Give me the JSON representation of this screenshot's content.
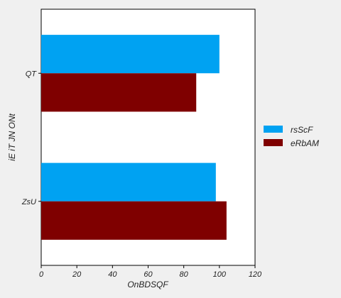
{
  "chart_data": {
    "type": "bar",
    "orientation": "horizontal",
    "categories": [
      "QT",
      "ZsU"
    ],
    "series": [
      {
        "name": "rsScF",
        "values": [
          100,
          98
        ],
        "color": "#00a2f2"
      },
      {
        "name": "eRbAM",
        "values": [
          87,
          104
        ],
        "color": "#7f0000"
      }
    ],
    "xlabel": "OnBDSQF",
    "ylabel": "iE iT JN  ONt",
    "xlim": [
      0,
      120
    ],
    "xticks": [
      0,
      20,
      40,
      60,
      80,
      100,
      120
    ],
    "grid": false,
    "legend_position": "right",
    "background": "#ffffff",
    "page_background": "#f0f0f0"
  }
}
